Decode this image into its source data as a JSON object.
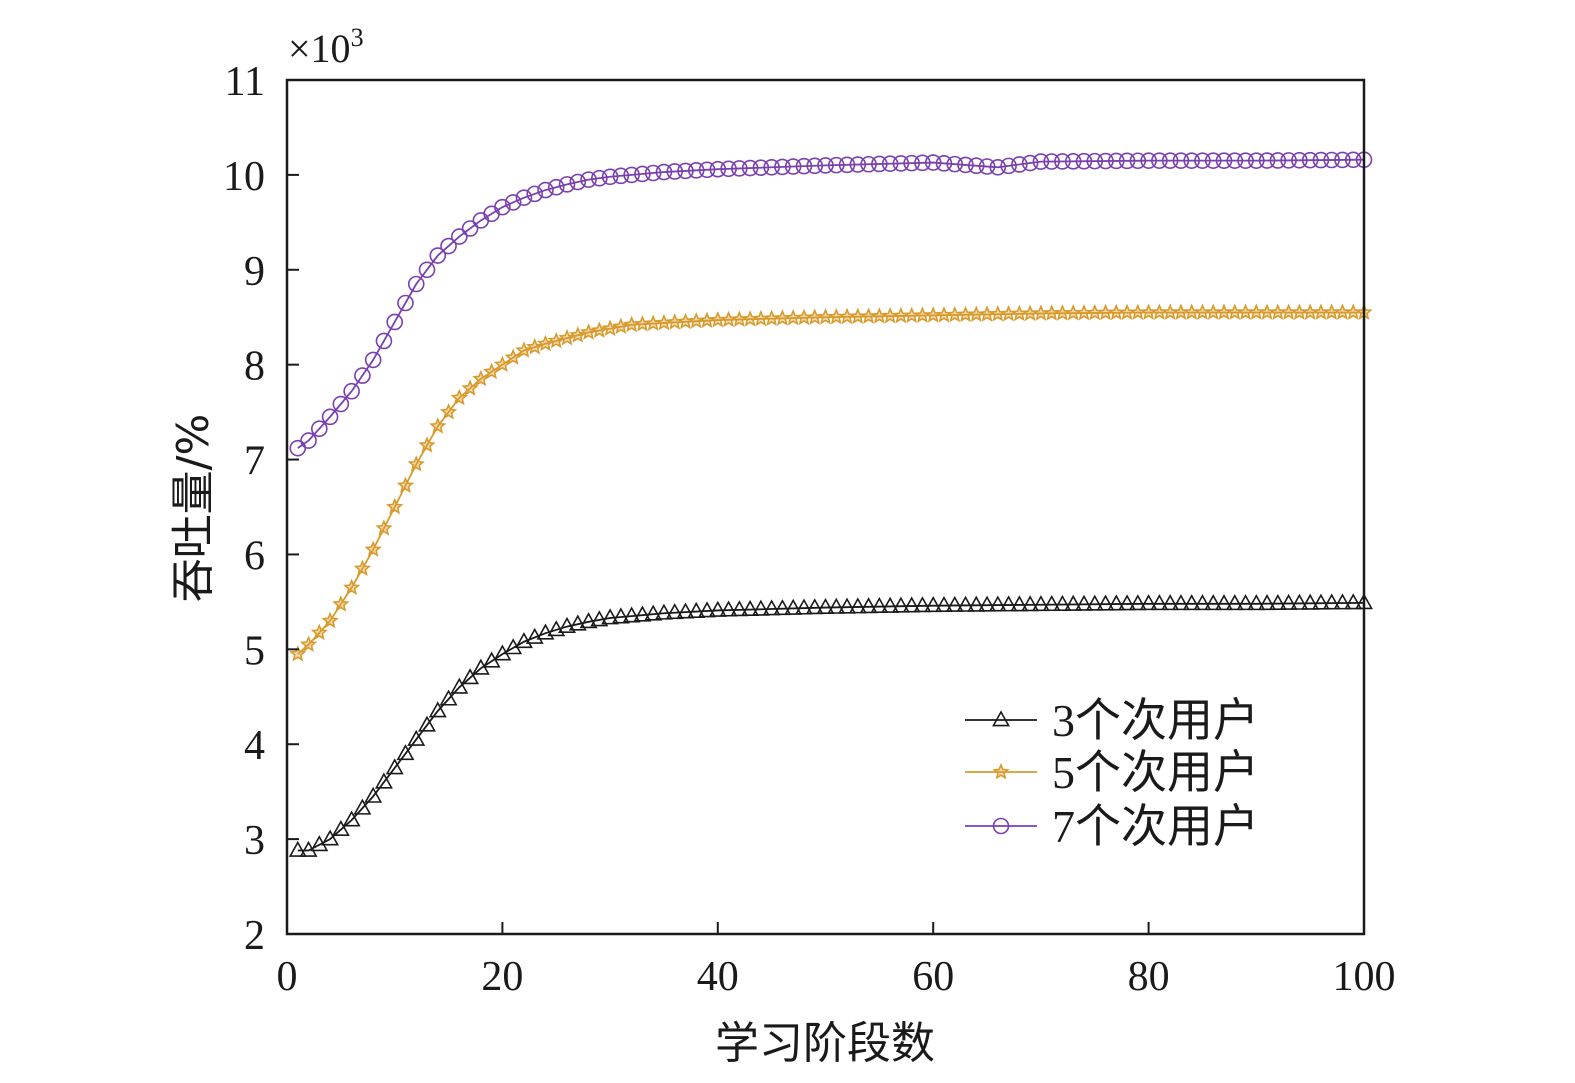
{
  "chart_data": {
    "type": "line",
    "xlabel": "学习阶段数",
    "ylabel": "吞吐量/%",
    "scale_note": "×10",
    "scale_exp": "3",
    "xlim": [
      0,
      100
    ],
    "ylim": [
      2,
      11
    ],
    "xticks": [
      "0",
      "20",
      "40",
      "60",
      "80",
      "100"
    ],
    "yticks": [
      "2",
      "3",
      "4",
      "5",
      "6",
      "7",
      "8",
      "9",
      "10",
      "11"
    ],
    "legend_position": "lower-right",
    "series": [
      {
        "name": "3个次用户",
        "color": "#1a1a1a",
        "marker": "triangle",
        "x": [
          1,
          2,
          4,
          6,
          8,
          10,
          12,
          14,
          16,
          18,
          20,
          22,
          24,
          26,
          28,
          30,
          35,
          40,
          50,
          60,
          70,
          80,
          90,
          100
        ],
        "y": [
          2.88,
          2.88,
          3.0,
          3.2,
          3.45,
          3.75,
          4.05,
          4.35,
          4.6,
          4.8,
          4.95,
          5.08,
          5.17,
          5.24,
          5.29,
          5.33,
          5.38,
          5.41,
          5.44,
          5.46,
          5.47,
          5.48,
          5.48,
          5.49
        ]
      },
      {
        "name": "5个次用户",
        "color": "#d89a2c",
        "marker": "star",
        "x": [
          1,
          2,
          4,
          6,
          8,
          10,
          12,
          14,
          16,
          18,
          20,
          22,
          24,
          26,
          28,
          30,
          32,
          35,
          40,
          50,
          60,
          70,
          80,
          90,
          100
        ],
        "y": [
          4.95,
          5.05,
          5.3,
          5.65,
          6.05,
          6.5,
          6.95,
          7.35,
          7.65,
          7.85,
          8.0,
          8.15,
          8.22,
          8.28,
          8.34,
          8.38,
          8.42,
          8.44,
          8.47,
          8.5,
          8.52,
          8.54,
          8.55,
          8.55,
          8.55
        ]
      },
      {
        "name": "7个次用户",
        "color": "#7a3fb0",
        "marker": "circle",
        "x": [
          1,
          2,
          4,
          6,
          8,
          10,
          12,
          14,
          16,
          18,
          20,
          22,
          24,
          26,
          28,
          30,
          35,
          40,
          50,
          60,
          66,
          70,
          80,
          90,
          100
        ],
        "y": [
          7.12,
          7.2,
          7.45,
          7.72,
          8.05,
          8.45,
          8.85,
          9.15,
          9.35,
          9.52,
          9.66,
          9.76,
          9.84,
          9.9,
          9.95,
          9.98,
          10.03,
          10.06,
          10.1,
          10.13,
          10.08,
          10.14,
          10.15,
          10.15,
          10.16
        ]
      }
    ]
  }
}
